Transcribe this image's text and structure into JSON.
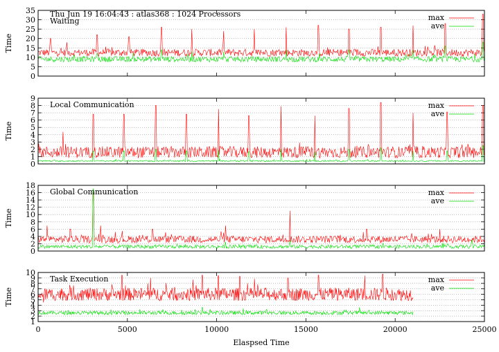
{
  "header": "Thu Jun 19 16:04:43 : atlas368 : 1024 Processors",
  "colors": {
    "max": "#ff0000",
    "ave": "#00dd00",
    "grid": "#a0a0a0",
    "frame": "#000000"
  },
  "chart_data": [
    {
      "type": "line",
      "title": "Waiting",
      "ylabel": "Time",
      "ylim": [
        0,
        35
      ],
      "yticks": [
        0,
        5,
        10,
        15,
        20,
        25,
        30,
        35
      ],
      "xlim": [
        0,
        25000
      ],
      "grid": true,
      "legend": "top-right",
      "series": [
        {
          "name": "max",
          "x_end": 25000,
          "base": 12.5,
          "noise": 2.0,
          "spikes": [
            [
              700,
              20
            ],
            [
              1600,
              18
            ],
            [
              3300,
              22
            ],
            [
              5100,
              21
            ],
            [
              6900,
              26
            ],
            [
              8600,
              25
            ],
            [
              10400,
              24
            ],
            [
              12100,
              25
            ],
            [
              13900,
              26
            ],
            [
              15700,
              27
            ],
            [
              17400,
              25
            ],
            [
              19200,
              26
            ],
            [
              21000,
              27
            ],
            [
              22800,
              28
            ],
            [
              24900,
              33
            ]
          ]
        },
        {
          "name": "ave",
          "x_end": 25000,
          "base": 9.0,
          "noise": 1.5,
          "spikes": [
            [
              3300,
              12
            ],
            [
              6900,
              14
            ],
            [
              8600,
              13
            ],
            [
              10400,
              13
            ],
            [
              13900,
              14
            ],
            [
              17400,
              14
            ],
            [
              21000,
              14
            ],
            [
              22800,
              16
            ],
            [
              24900,
              18
            ]
          ]
        }
      ]
    },
    {
      "type": "line",
      "title": "Local Communication",
      "ylabel": "Time",
      "ylim": [
        0,
        9
      ],
      "yticks": [
        0,
        1,
        2,
        3,
        4,
        5,
        6,
        7,
        8,
        9
      ],
      "xlim": [
        0,
        25000
      ],
      "grid": true,
      "legend": "top-right",
      "series": [
        {
          "name": "max",
          "x_end": 25000,
          "base": 1.6,
          "noise": 0.8,
          "spikes": [
            [
              1400,
              4.4
            ],
            [
              3100,
              6.8
            ],
            [
              4800,
              6.8
            ],
            [
              6600,
              8.0
            ],
            [
              8300,
              6.8
            ],
            [
              10100,
              7.5
            ],
            [
              11800,
              6.6
            ],
            [
              13600,
              7.9
            ],
            [
              15500,
              6.6
            ],
            [
              17400,
              7.6
            ],
            [
              19200,
              8.4
            ],
            [
              21000,
              7.0
            ],
            [
              22900,
              7.1
            ],
            [
              24900,
              8.0
            ]
          ]
        },
        {
          "name": "ave",
          "x_end": 25000,
          "base": 0.4,
          "noise": 0.1,
          "spikes": [
            [
              3100,
              1.8
            ],
            [
              4800,
              1.8
            ],
            [
              6600,
              2.0
            ],
            [
              8300,
              1.8
            ],
            [
              10100,
              1.9
            ],
            [
              11800,
              1.7
            ],
            [
              13600,
              2.0
            ],
            [
              15500,
              1.7
            ],
            [
              17400,
              2.0
            ],
            [
              19200,
              2.2
            ],
            [
              21000,
              1.8
            ],
            [
              22900,
              1.8
            ],
            [
              24900,
              2.5
            ]
          ]
        }
      ]
    },
    {
      "type": "line",
      "title": "Global Communication",
      "ylabel": "Time",
      "ylim": [
        0,
        18
      ],
      "yticks": [
        0,
        2,
        4,
        6,
        8,
        10,
        12,
        14,
        16,
        18
      ],
      "xlim": [
        0,
        25000
      ],
      "grid": true,
      "legend": "top-right",
      "series": [
        {
          "name": "max",
          "x_end": 25000,
          "base": 3.2,
          "noise": 1.0,
          "spikes": [
            [
              500,
              7
            ],
            [
              1800,
              6
            ],
            [
              3100,
              16
            ],
            [
              3500,
              7
            ],
            [
              6400,
              6
            ],
            [
              10500,
              7
            ],
            [
              14100,
              11
            ],
            [
              18400,
              6
            ],
            [
              22500,
              6
            ]
          ]
        },
        {
          "name": "ave",
          "x_end": 25000,
          "base": 1.2,
          "noise": 0.5,
          "spikes": [
            [
              3100,
              17
            ],
            [
              10500,
              2.5
            ],
            [
              14100,
              3
            ],
            [
              24300,
              3
            ]
          ]
        }
      ]
    },
    {
      "type": "line",
      "title": "Task Execution",
      "ylabel": "Time",
      "xlabel": "Elaspsed Time",
      "ylim": [
        1,
        10
      ],
      "yticks": [
        1,
        2,
        3,
        4,
        5,
        6,
        7,
        8,
        9,
        10
      ],
      "xlim": [
        0,
        25000
      ],
      "xticks": [
        0,
        5000,
        10000,
        15000,
        20000,
        25000
      ],
      "grid": true,
      "legend": "top-right",
      "series": [
        {
          "name": "max",
          "x_end": 21000,
          "base": 6.0,
          "noise": 1.2,
          "spikes": [
            [
              300,
              4.5
            ],
            [
              4700,
              9.5
            ],
            [
              6300,
              9.0
            ],
            [
              9200,
              9.5
            ],
            [
              10100,
              9.4
            ],
            [
              11300,
              9.3
            ],
            [
              14000,
              9.0
            ],
            [
              15700,
              9.5
            ],
            [
              18300,
              9.4
            ],
            [
              19300,
              9.7
            ]
          ]
        },
        {
          "name": "ave",
          "x_end": 21000,
          "base": 2.6,
          "noise": 0.35,
          "spikes": [
            [
              9200,
              3.6
            ],
            [
              12800,
              3.2
            ],
            [
              18000,
              3.6
            ]
          ]
        }
      ]
    }
  ]
}
